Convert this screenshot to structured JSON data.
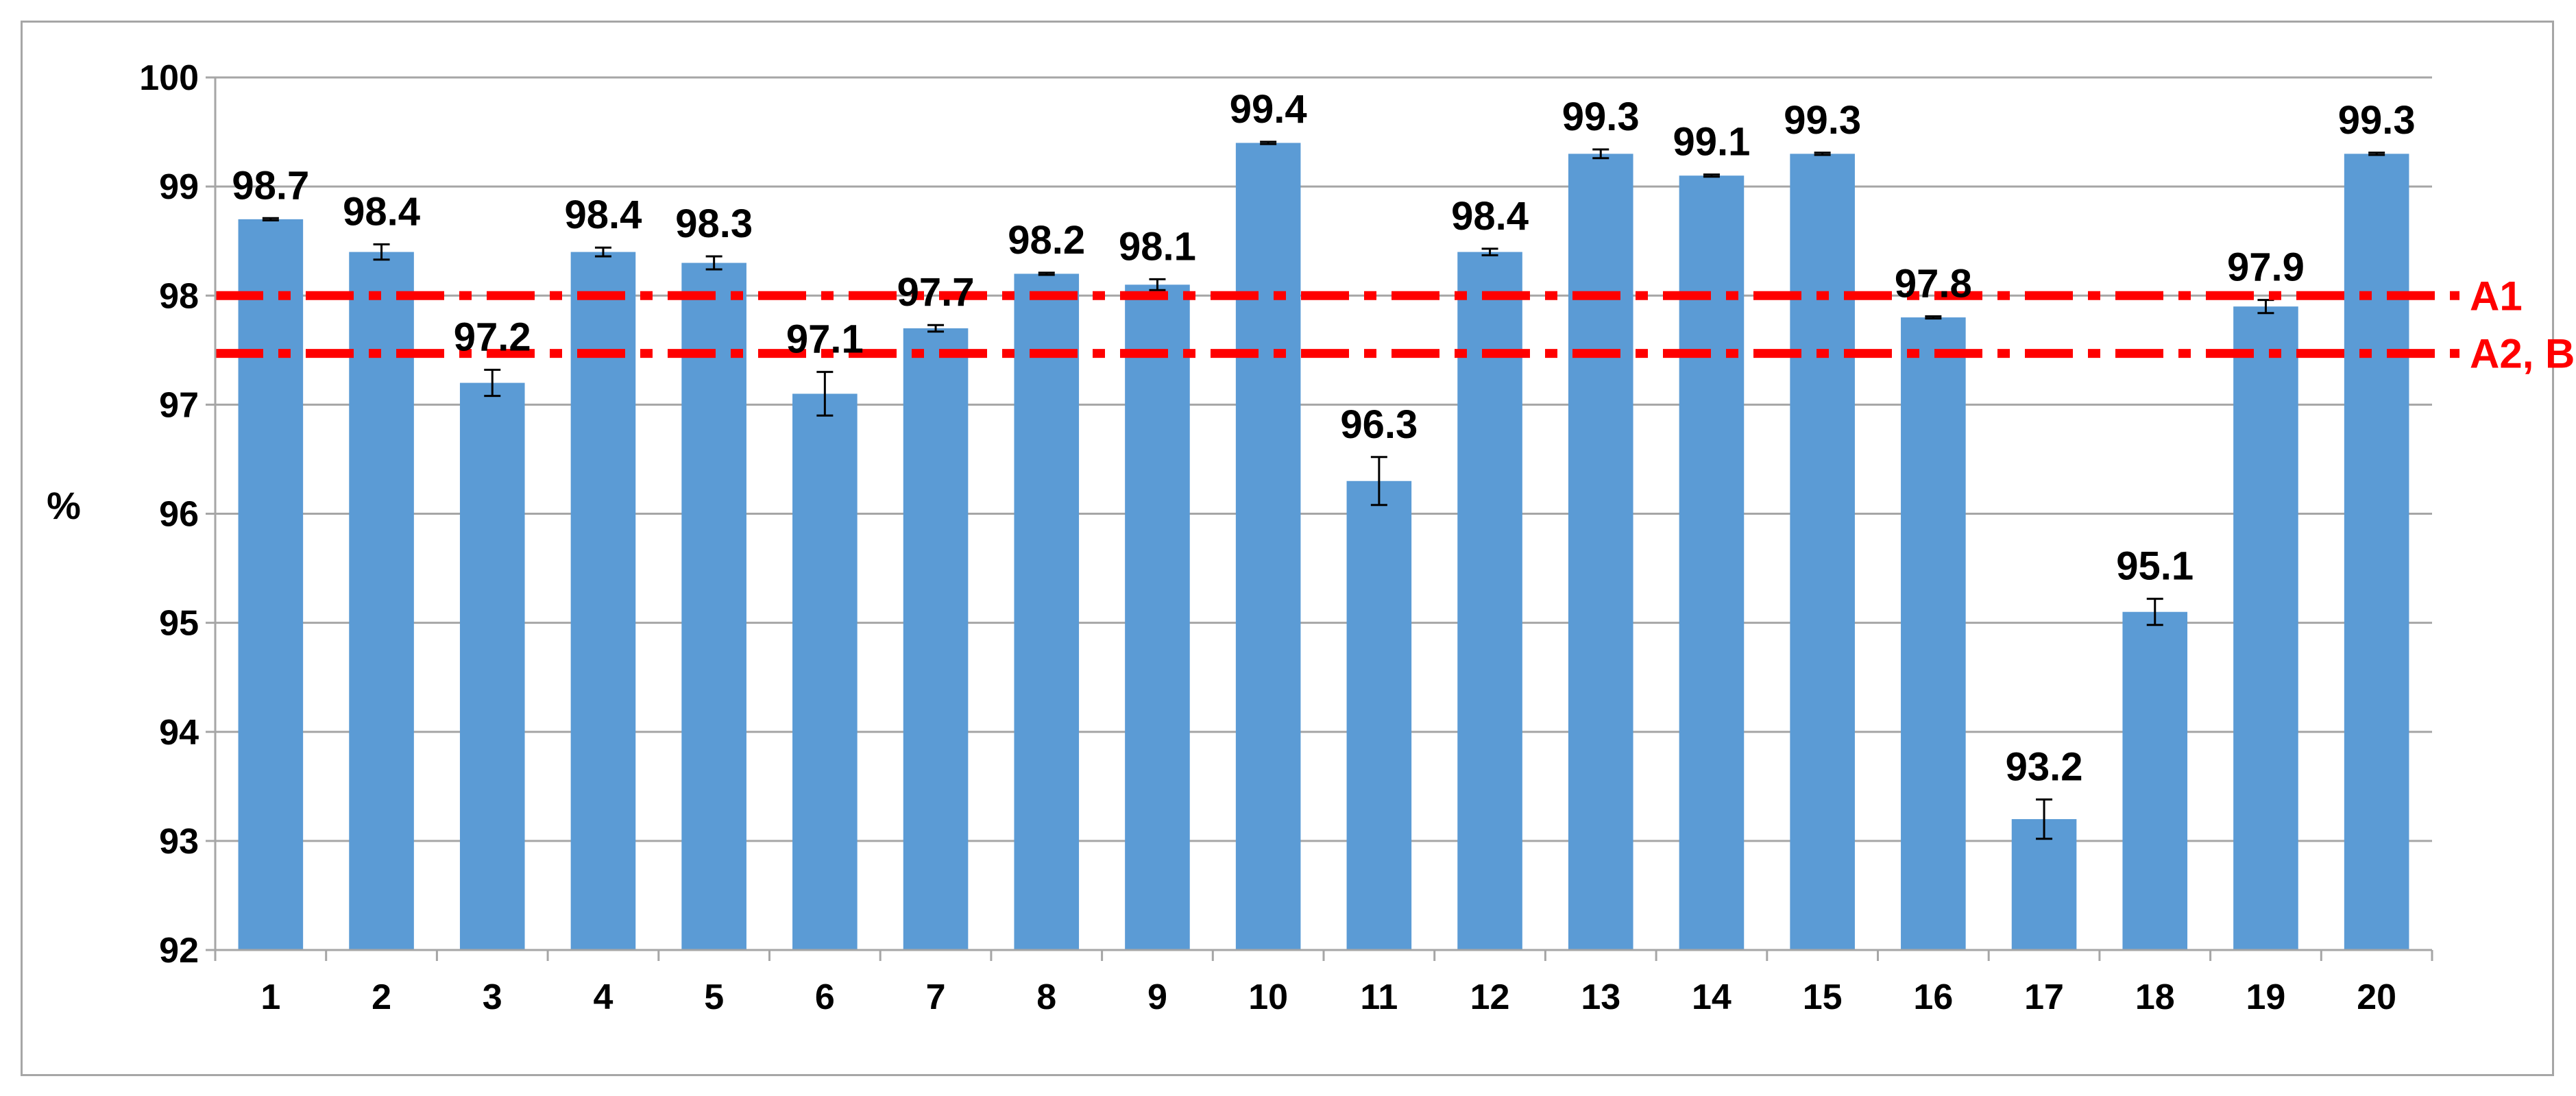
{
  "chart_data": {
    "type": "bar",
    "title": "",
    "xlabel": "",
    "ylabel": "%",
    "ylim": [
      92,
      100
    ],
    "yticks": [
      92,
      93,
      94,
      95,
      96,
      97,
      98,
      99,
      100
    ],
    "grid": "horizontal",
    "categories": [
      "1",
      "2",
      "3",
      "4",
      "5",
      "6",
      "7",
      "8",
      "9",
      "10",
      "11",
      "12",
      "13",
      "14",
      "15",
      "16",
      "17",
      "18",
      "19",
      "20"
    ],
    "values": [
      98.7,
      98.4,
      97.2,
      98.4,
      98.3,
      97.1,
      97.7,
      98.2,
      98.1,
      99.4,
      96.3,
      98.4,
      99.3,
      99.1,
      99.3,
      97.8,
      93.2,
      95.1,
      97.9,
      99.3
    ],
    "error": [
      0.01,
      0.07,
      0.12,
      0.04,
      0.06,
      0.2,
      0.03,
      0.01,
      0.05,
      0.01,
      0.22,
      0.03,
      0.04,
      0.01,
      0.01,
      0.01,
      0.18,
      0.12,
      0.06,
      0.01
    ],
    "labels": [
      "98.7",
      "98.4",
      "97.2",
      "98.4",
      "98.3",
      "97.1",
      "97.7",
      "98.2",
      "98.1",
      "99.4",
      "96.3",
      "98.4",
      "99.3",
      "99.1",
      "99.3",
      "97.8",
      "93.2",
      "95.1",
      "97.9",
      "99.3"
    ],
    "reference_lines": [
      {
        "label": "A1",
        "value": 98.0
      },
      {
        "label": "A2, B",
        "value": 97.47
      }
    ],
    "colors": {
      "bar": "#5b9bd5",
      "reference": "#ff0000",
      "grid": "#a6a6a6"
    }
  }
}
